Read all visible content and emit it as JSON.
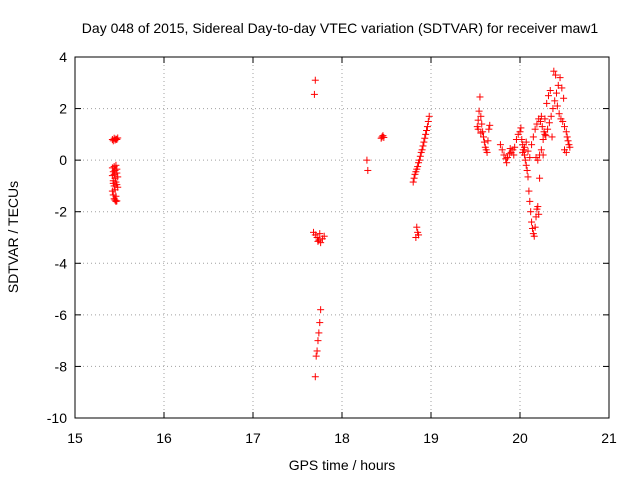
{
  "chart_data": {
    "type": "scatter",
    "title": "Day 048 of 2015, Sidereal Day-to-day VTEC variation (SDTVAR) for receiver maw1",
    "xlabel": "GPS time / hours",
    "ylabel": "SDTVAR / TECUs",
    "xlim": [
      15,
      21
    ],
    "ylim": [
      -10,
      4
    ],
    "xticks": [
      15,
      16,
      17,
      18,
      19,
      20,
      21
    ],
    "yticks": [
      -10,
      -8,
      -6,
      -4,
      -2,
      0,
      2,
      4
    ],
    "grid": true,
    "marker": "+",
    "color": "#ff0000",
    "series": [
      {
        "name": "SDTVAR",
        "points": [
          [
            15.42,
            0.8
          ],
          [
            15.43,
            0.75
          ],
          [
            15.44,
            0.85
          ],
          [
            15.45,
            0.78
          ],
          [
            15.46,
            0.82
          ],
          [
            15.47,
            0.8
          ],
          [
            15.48,
            0.86
          ],
          [
            15.42,
            -0.3
          ],
          [
            15.43,
            -0.45
          ],
          [
            15.44,
            -0.55
          ],
          [
            15.45,
            -0.7
          ],
          [
            15.46,
            -0.85
          ],
          [
            15.47,
            -0.95
          ],
          [
            15.48,
            -1.05
          ],
          [
            15.42,
            -1.2
          ],
          [
            15.43,
            -1.35
          ],
          [
            15.44,
            -1.5
          ],
          [
            15.45,
            -1.55
          ],
          [
            15.46,
            -1.6
          ],
          [
            15.47,
            -1.58
          ],
          [
            15.42,
            -0.6
          ],
          [
            15.43,
            -0.8
          ],
          [
            15.44,
            -1.0
          ],
          [
            15.45,
            -0.4
          ],
          [
            15.46,
            -0.2
          ],
          [
            15.47,
            -0.35
          ],
          [
            15.48,
            -0.65
          ],
          [
            15.44,
            -0.25
          ],
          [
            15.45,
            -1.15
          ],
          [
            15.46,
            -1.4
          ],
          [
            15.43,
            -0.9
          ],
          [
            15.47,
            -0.5
          ],
          [
            17.7,
            3.1
          ],
          [
            17.69,
            2.55
          ],
          [
            17.68,
            -2.8
          ],
          [
            17.7,
            -2.9
          ],
          [
            17.72,
            -3.0
          ],
          [
            17.74,
            -3.1
          ],
          [
            17.76,
            -3.2
          ],
          [
            17.78,
            -3.05
          ],
          [
            17.8,
            -2.95
          ],
          [
            17.75,
            -2.85
          ],
          [
            17.73,
            -3.15
          ],
          [
            17.76,
            -5.8
          ],
          [
            17.75,
            -6.3
          ],
          [
            17.74,
            -6.7
          ],
          [
            17.73,
            -7.0
          ],
          [
            17.72,
            -7.4
          ],
          [
            17.71,
            -7.6
          ],
          [
            17.7,
            -8.4
          ],
          [
            18.28,
            0.0
          ],
          [
            18.29,
            -0.4
          ],
          [
            18.44,
            0.85
          ],
          [
            18.45,
            0.9
          ],
          [
            18.46,
            0.95
          ],
          [
            18.47,
            0.88
          ],
          [
            18.8,
            -0.85
          ],
          [
            18.81,
            -0.7
          ],
          [
            18.82,
            -0.55
          ],
          [
            18.83,
            -0.45
          ],
          [
            18.84,
            -0.35
          ],
          [
            18.85,
            -0.25
          ],
          [
            18.86,
            -0.1
          ],
          [
            18.87,
            0.0
          ],
          [
            18.88,
            0.15
          ],
          [
            18.89,
            0.3
          ],
          [
            18.9,
            0.4
          ],
          [
            18.91,
            0.55
          ],
          [
            18.92,
            0.7
          ],
          [
            18.93,
            0.85
          ],
          [
            18.94,
            1.0
          ],
          [
            18.95,
            1.15
          ],
          [
            18.96,
            1.3
          ],
          [
            18.97,
            1.5
          ],
          [
            18.98,
            1.7
          ],
          [
            18.84,
            -2.6
          ],
          [
            18.85,
            -2.8
          ],
          [
            18.83,
            -3.0
          ],
          [
            18.86,
            -2.9
          ],
          [
            19.52,
            1.3
          ],
          [
            19.53,
            1.55
          ],
          [
            19.54,
            1.9
          ],
          [
            19.55,
            2.45
          ],
          [
            19.56,
            1.7
          ],
          [
            19.57,
            1.4
          ],
          [
            19.58,
            1.1
          ],
          [
            19.59,
            0.9
          ],
          [
            19.6,
            0.7
          ],
          [
            19.61,
            0.5
          ],
          [
            19.62,
            0.4
          ],
          [
            19.63,
            0.3
          ],
          [
            19.64,
            0.75
          ],
          [
            19.65,
            1.2
          ],
          [
            19.66,
            1.35
          ],
          [
            19.53,
            1.2
          ],
          [
            19.56,
            1.05
          ],
          [
            19.78,
            0.6
          ],
          [
            19.8,
            0.4
          ],
          [
            19.82,
            0.2
          ],
          [
            19.84,
            0.05
          ],
          [
            19.86,
            0.1
          ],
          [
            19.88,
            0.25
          ],
          [
            19.9,
            0.3
          ],
          [
            19.92,
            0.4
          ],
          [
            19.94,
            0.5
          ],
          [
            19.96,
            0.8
          ],
          [
            19.98,
            1.0
          ],
          [
            20.0,
            1.1
          ],
          [
            20.01,
            1.25
          ],
          [
            19.85,
            -0.1
          ],
          [
            19.89,
            0.45
          ],
          [
            19.93,
            0.2
          ],
          [
            20.02,
            0.8
          ],
          [
            20.03,
            0.6
          ],
          [
            20.04,
            0.4
          ],
          [
            20.05,
            0.2
          ],
          [
            20.06,
            0.0
          ],
          [
            20.07,
            -0.2
          ],
          [
            20.08,
            -0.4
          ],
          [
            20.09,
            -0.65
          ],
          [
            20.1,
            -1.2
          ],
          [
            20.11,
            -1.6
          ],
          [
            20.12,
            -2.0
          ],
          [
            20.13,
            -2.4
          ],
          [
            20.14,
            -2.65
          ],
          [
            20.15,
            -2.85
          ],
          [
            20.16,
            -2.95
          ],
          [
            20.17,
            -2.6
          ],
          [
            20.18,
            -2.2
          ],
          [
            20.19,
            -1.9
          ],
          [
            20.2,
            -1.8
          ],
          [
            20.21,
            -2.1
          ],
          [
            20.22,
            -0.7
          ],
          [
            20.03,
            0.3
          ],
          [
            20.05,
            0.5
          ],
          [
            20.07,
            0.7
          ],
          [
            20.09,
            0.35
          ],
          [
            20.11,
            0.1
          ],
          [
            20.13,
            0.6
          ],
          [
            20.15,
            0.9
          ],
          [
            20.17,
            1.2
          ],
          [
            20.19,
            1.4
          ],
          [
            20.21,
            1.6
          ],
          [
            20.23,
            1.5
          ],
          [
            20.25,
            1.3
          ],
          [
            20.27,
            1.1
          ],
          [
            20.29,
            0.95
          ],
          [
            20.31,
            1.2
          ],
          [
            20.33,
            1.45
          ],
          [
            20.35,
            1.7
          ],
          [
            20.37,
            2.0
          ],
          [
            20.39,
            2.3
          ],
          [
            20.41,
            2.6
          ],
          [
            20.43,
            2.9
          ],
          [
            20.45,
            3.2
          ],
          [
            20.47,
            2.8
          ],
          [
            20.49,
            2.4
          ],
          [
            20.3,
            2.2
          ],
          [
            20.32,
            2.5
          ],
          [
            20.34,
            2.7
          ],
          [
            20.38,
            3.45
          ],
          [
            20.4,
            3.3
          ],
          [
            20.42,
            2.1
          ],
          [
            20.44,
            1.8
          ],
          [
            20.46,
            1.6
          ],
          [
            20.48,
            1.5
          ],
          [
            20.5,
            1.3
          ],
          [
            20.52,
            1.1
          ],
          [
            20.53,
            0.9
          ],
          [
            20.54,
            0.75
          ],
          [
            20.55,
            0.6
          ],
          [
            20.56,
            0.5
          ],
          [
            20.5,
            0.4
          ],
          [
            20.52,
            0.3
          ],
          [
            20.2,
            0.0
          ],
          [
            20.22,
            0.2
          ],
          [
            20.24,
            0.4
          ],
          [
            20.26,
            0.8
          ],
          [
            20.28,
            1.0
          ],
          [
            20.36,
            0.9
          ],
          [
            20.24,
            1.7
          ],
          [
            20.28,
            1.6
          ],
          [
            20.26,
            0.2
          ],
          [
            20.18,
            0.1
          ]
        ]
      }
    ]
  }
}
